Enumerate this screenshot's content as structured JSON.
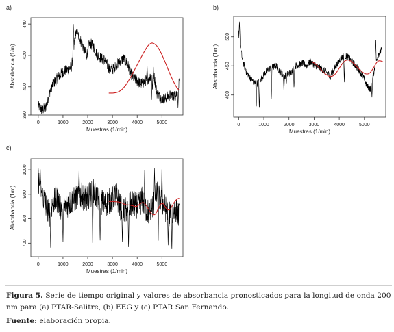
{
  "figure": {
    "caption_label": "Figura 5.",
    "caption_text": "Serie de tiempo original y valores de absorbancia pronosticados para la longitud de onda 200 nm para (a) PTAR-Salitre, (b) EEG y (c) PTAR San Fernando.",
    "source_label": "Fuente:",
    "source_text": "elaboración propia."
  },
  "chart_data": [
    {
      "panel": "a)",
      "type": "line",
      "xlabel": "Muestras (1/min)",
      "ylabel": "Absorbancia (1/m)",
      "xlim": [
        -300,
        5850
      ],
      "ylim": [
        382,
        444
      ],
      "xticks": [
        0,
        1000,
        2000,
        3000,
        4000,
        5000
      ],
      "yticks": [
        380,
        400,
        420,
        440
      ],
      "yticks_labeled": [
        380,
        400,
        420,
        440
      ],
      "series": [
        {
          "role": "observed",
          "color": "#000000",
          "x": [
            0,
            150,
            300,
            450,
            600,
            750,
            900,
            1050,
            1200,
            1350,
            1500,
            1650,
            1800,
            1950,
            2100,
            2250,
            2400,
            2550,
            2700,
            2850,
            3000,
            3150,
            3300,
            3450,
            3600,
            3750,
            3900,
            4050,
            4200,
            4350,
            4500,
            4650,
            4800,
            4950,
            5100,
            5250,
            5400,
            5550,
            5700
          ],
          "y": [
            388,
            385,
            387,
            396,
            402,
            405,
            408,
            410,
            411,
            413,
            434,
            432,
            426,
            420,
            428,
            425,
            420,
            418,
            417,
            412,
            411,
            414,
            416,
            418,
            415,
            408,
            405,
            403,
            402,
            404,
            406,
            410,
            396,
            393,
            392,
            394,
            395,
            394,
            402
          ],
          "noise": 3.5,
          "spikes": [
            [
              1420,
              441
            ],
            [
              1580,
              437
            ],
            [
              2050,
              430
            ],
            [
              4400,
              414
            ],
            [
              4580,
              391
            ],
            [
              4620,
              397
            ],
            [
              5650,
              386
            ]
          ]
        },
        {
          "role": "forecast",
          "color": "#cc2020",
          "x": [
            2850,
            3100,
            3300,
            3500,
            3700,
            3900,
            4100,
            4300,
            4500,
            4700,
            4900,
            5100,
            5300,
            5500,
            5700
          ],
          "y": [
            396,
            396,
            397,
            400,
            405,
            411,
            417,
            423,
            428,
            428,
            424,
            417,
            409,
            402,
            397
          ]
        }
      ]
    },
    {
      "panel": "b)",
      "type": "line",
      "xlabel": "Muestras (1/min)",
      "ylabel": "Absorbancia (1/m)",
      "xlim": [
        -200,
        5850
      ],
      "ylim": [
        362,
        535
      ],
      "xticks": [
        0,
        1000,
        2000,
        3000,
        4000,
        5000
      ],
      "yticks": [
        400,
        450,
        500
      ],
      "yticks_labeled": [
        400,
        450,
        500
      ],
      "series": [
        {
          "role": "observed",
          "color": "#000000",
          "x": [
            0,
            150,
            300,
            450,
            600,
            750,
            900,
            1050,
            1200,
            1350,
            1500,
            1650,
            1800,
            1950,
            2100,
            2250,
            2400,
            2550,
            2700,
            2850,
            3000,
            3150,
            3300,
            3450,
            3600,
            3750,
            3900,
            4050,
            4200,
            4350,
            4500,
            4650,
            4800,
            4950,
            5100,
            5250,
            5400,
            5550,
            5700
          ],
          "y": [
            505,
            460,
            440,
            430,
            422,
            420,
            428,
            438,
            445,
            448,
            450,
            440,
            432,
            436,
            440,
            450,
            452,
            455,
            450,
            458,
            452,
            448,
            445,
            440,
            435,
            440,
            452,
            462,
            468,
            465,
            458,
            450,
            442,
            432,
            415,
            410,
            445,
            470,
            478
          ],
          "noise": 6,
          "spikes": [
            [
              30,
              528
            ],
            [
              700,
              375
            ],
            [
              820,
              372
            ],
            [
              1300,
              390
            ],
            [
              1800,
              405
            ],
            [
              1900,
              420
            ],
            [
              2200,
              410
            ],
            [
              3650,
              425
            ],
            [
              4200,
              420
            ],
            [
              5300,
              395
            ],
            [
              5450,
              500
            ]
          ]
        },
        {
          "role": "forecast",
          "color": "#cc2020",
          "x": [
            2900,
            3100,
            3300,
            3500,
            3700,
            3900,
            4100,
            4300,
            4500,
            4700,
            4900,
            5100,
            5300,
            5450,
            5600,
            5750
          ],
          "y": [
            458,
            452,
            442,
            434,
            430,
            438,
            454,
            462,
            458,
            448,
            440,
            434,
            440,
            455,
            462,
            455
          ]
        }
      ]
    },
    {
      "panel": "c)",
      "type": "line",
      "xlabel": "Muestras (1/min)",
      "ylabel": "Absorbancia (1/m)",
      "xlim": [
        -300,
        5850
      ],
      "ylim": [
        645,
        1045
      ],
      "xticks": [
        0,
        1000,
        2000,
        3000,
        4000,
        5000
      ],
      "yticks": [
        700,
        800,
        900,
        1000
      ],
      "yticks_labeled": [
        700,
        800,
        900,
        1000
      ],
      "series": [
        {
          "role": "observed",
          "color": "#000000",
          "x": [
            0,
            150,
            300,
            450,
            600,
            750,
            900,
            1050,
            1200,
            1350,
            1500,
            1650,
            1800,
            1950,
            2100,
            2250,
            2400,
            2550,
            2700,
            2850,
            3000,
            3150,
            3300,
            3450,
            3600,
            3750,
            3900,
            4050,
            4200,
            4350,
            4500,
            4650,
            4800,
            4950,
            5100,
            5250,
            5400,
            5550,
            5700
          ],
          "y": [
            960,
            900,
            860,
            820,
            870,
            880,
            850,
            840,
            860,
            870,
            880,
            900,
            890,
            880,
            900,
            910,
            880,
            870,
            860,
            870,
            880,
            900,
            850,
            830,
            840,
            860,
            860,
            850,
            880,
            840,
            820,
            860,
            900,
            880,
            850,
            820,
            830,
            840,
            810
          ],
          "noise": 55,
          "spikes": [
            [
              80,
              1010
            ],
            [
              500,
              680
            ],
            [
              1000,
              700
            ],
            [
              1650,
              1010
            ],
            [
              2200,
              680
            ],
            [
              2500,
              700
            ],
            [
              3400,
              700
            ],
            [
              3650,
              670
            ],
            [
              4300,
              1000
            ],
            [
              4700,
              1010
            ],
            [
              4850,
              700
            ],
            [
              5000,
              1020
            ],
            [
              5250,
              690
            ],
            [
              5400,
              660
            ]
          ]
        },
        {
          "role": "forecast",
          "color": "#cc2020",
          "x": [
            2850,
            3000,
            3150,
            3300,
            3450,
            3600,
            3750,
            3900,
            4050,
            4200,
            4350,
            4500,
            4650,
            4800,
            4950,
            5100,
            5250,
            5400,
            5550,
            5700
          ],
          "y": [
            870,
            872,
            868,
            870,
            860,
            855,
            858,
            848,
            850,
            875,
            860,
            830,
            810,
            820,
            875,
            860,
            820,
            850,
            880,
            885
          ]
        }
      ]
    }
  ]
}
